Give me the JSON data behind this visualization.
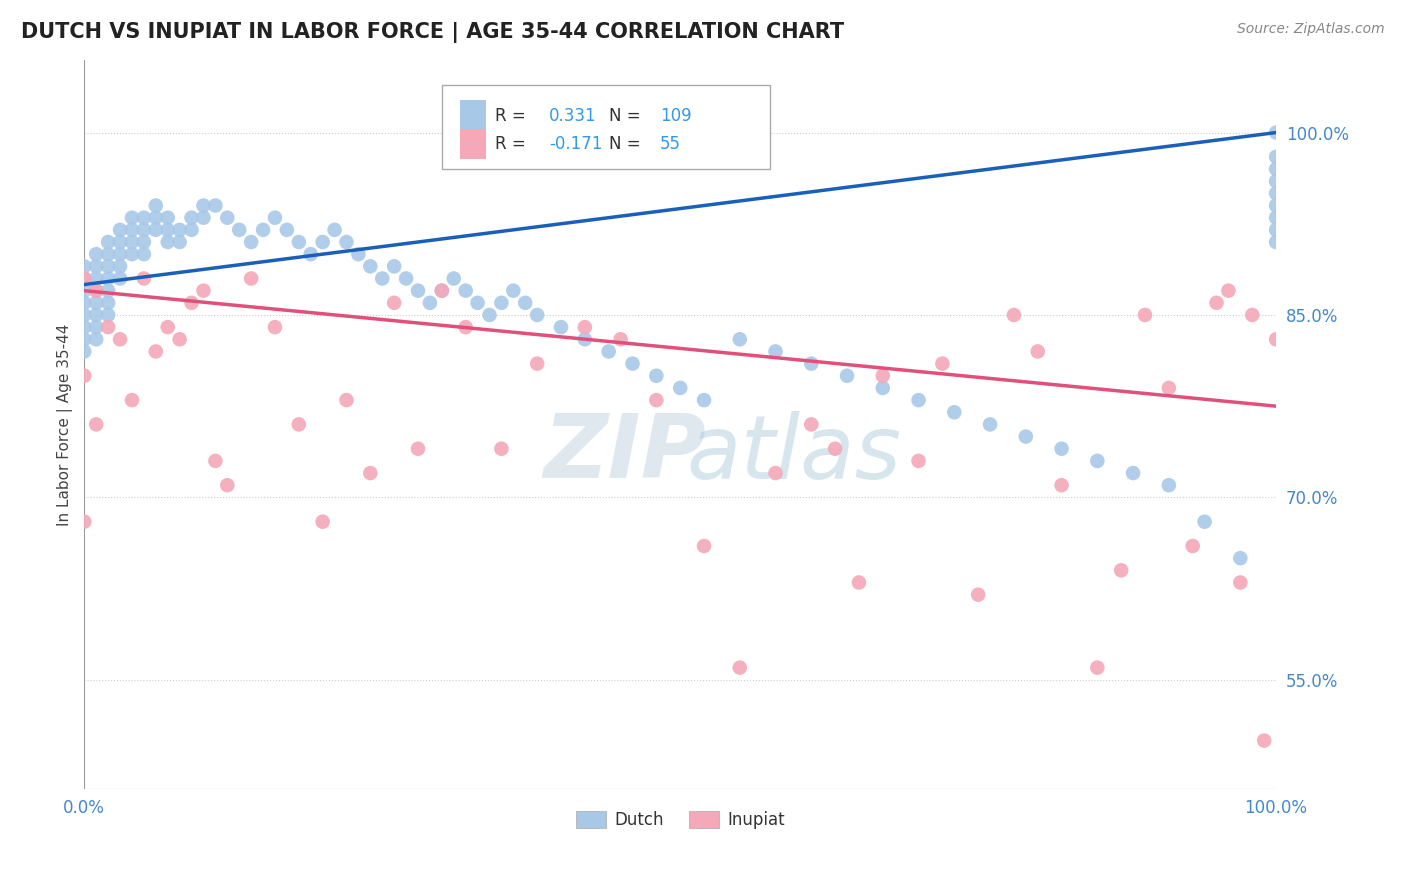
{
  "title": "DUTCH VS INUPIAT IN LABOR FORCE | AGE 35-44 CORRELATION CHART",
  "source": "Source: ZipAtlas.com",
  "ylabel": "In Labor Force | Age 35-44",
  "xlim": [
    0.0,
    1.0
  ],
  "ylim": [
    0.46,
    1.06
  ],
  "xtick_labels": [
    "0.0%",
    "100.0%"
  ],
  "ytick_labels": [
    "55.0%",
    "70.0%",
    "85.0%",
    "100.0%"
  ],
  "ytick_positions": [
    0.55,
    0.7,
    0.85,
    1.0
  ],
  "dutch_R": 0.331,
  "dutch_N": 109,
  "inupiat_R": -0.171,
  "inupiat_N": 55,
  "dutch_color": "#a8c8e8",
  "inupiat_color": "#f4a8b8",
  "dutch_line_color": "#1a5fba",
  "inupiat_line_color": "#e0507a",
  "background_color": "#ffffff",
  "grid_color": "#cccccc",
  "watermark_zip": "ZIP",
  "watermark_atlas": "atlas",
  "title_fontsize": 15,
  "dutch_points_x": [
    0.0,
    0.0,
    0.0,
    0.0,
    0.0,
    0.0,
    0.0,
    0.0,
    0.01,
    0.01,
    0.01,
    0.01,
    0.01,
    0.01,
    0.01,
    0.01,
    0.02,
    0.02,
    0.02,
    0.02,
    0.02,
    0.02,
    0.02,
    0.03,
    0.03,
    0.03,
    0.03,
    0.03,
    0.04,
    0.04,
    0.04,
    0.04,
    0.05,
    0.05,
    0.05,
    0.05,
    0.06,
    0.06,
    0.06,
    0.07,
    0.07,
    0.07,
    0.08,
    0.08,
    0.09,
    0.09,
    0.1,
    0.1,
    0.11,
    0.12,
    0.13,
    0.14,
    0.15,
    0.16,
    0.17,
    0.18,
    0.19,
    0.2,
    0.21,
    0.22,
    0.23,
    0.24,
    0.25,
    0.26,
    0.27,
    0.28,
    0.29,
    0.3,
    0.31,
    0.32,
    0.33,
    0.34,
    0.35,
    0.36,
    0.37,
    0.38,
    0.4,
    0.42,
    0.44,
    0.46,
    0.48,
    0.5,
    0.52,
    0.55,
    0.58,
    0.61,
    0.64,
    0.67,
    0.7,
    0.73,
    0.76,
    0.79,
    0.82,
    0.85,
    0.88,
    0.91,
    0.94,
    0.97,
    1.0,
    1.0,
    1.0,
    1.0,
    1.0,
    1.0,
    1.0,
    1.0,
    1.0
  ],
  "dutch_points_y": [
    0.89,
    0.88,
    0.87,
    0.86,
    0.85,
    0.84,
    0.83,
    0.82,
    0.9,
    0.89,
    0.88,
    0.87,
    0.86,
    0.85,
    0.84,
    0.83,
    0.91,
    0.9,
    0.89,
    0.88,
    0.87,
    0.86,
    0.85,
    0.92,
    0.91,
    0.9,
    0.89,
    0.88,
    0.93,
    0.92,
    0.91,
    0.9,
    0.93,
    0.92,
    0.91,
    0.9,
    0.94,
    0.93,
    0.92,
    0.93,
    0.92,
    0.91,
    0.92,
    0.91,
    0.93,
    0.92,
    0.94,
    0.93,
    0.94,
    0.93,
    0.92,
    0.91,
    0.92,
    0.93,
    0.92,
    0.91,
    0.9,
    0.91,
    0.92,
    0.91,
    0.9,
    0.89,
    0.88,
    0.89,
    0.88,
    0.87,
    0.86,
    0.87,
    0.88,
    0.87,
    0.86,
    0.85,
    0.86,
    0.87,
    0.86,
    0.85,
    0.84,
    0.83,
    0.82,
    0.81,
    0.8,
    0.79,
    0.78,
    0.83,
    0.82,
    0.81,
    0.8,
    0.79,
    0.78,
    0.77,
    0.76,
    0.75,
    0.74,
    0.73,
    0.72,
    0.71,
    0.68,
    0.65,
    0.98,
    0.97,
    0.96,
    0.95,
    0.94,
    0.93,
    0.92,
    0.91,
    1.0
  ],
  "inupiat_points_x": [
    0.0,
    0.0,
    0.0,
    0.01,
    0.01,
    0.02,
    0.03,
    0.04,
    0.05,
    0.06,
    0.07,
    0.08,
    0.09,
    0.1,
    0.11,
    0.12,
    0.14,
    0.16,
    0.18,
    0.2,
    0.22,
    0.24,
    0.26,
    0.28,
    0.3,
    0.32,
    0.35,
    0.38,
    0.42,
    0.45,
    0.48,
    0.52,
    0.55,
    0.58,
    0.61,
    0.63,
    0.65,
    0.67,
    0.7,
    0.72,
    0.75,
    0.78,
    0.8,
    0.82,
    0.85,
    0.87,
    0.89,
    0.91,
    0.93,
    0.95,
    0.96,
    0.97,
    0.98,
    0.99,
    1.0
  ],
  "inupiat_points_y": [
    0.88,
    0.8,
    0.68,
    0.87,
    0.76,
    0.84,
    0.83,
    0.78,
    0.88,
    0.82,
    0.84,
    0.83,
    0.86,
    0.87,
    0.73,
    0.71,
    0.88,
    0.84,
    0.76,
    0.68,
    0.78,
    0.72,
    0.86,
    0.74,
    0.87,
    0.84,
    0.74,
    0.81,
    0.84,
    0.83,
    0.78,
    0.66,
    0.56,
    0.72,
    0.76,
    0.74,
    0.63,
    0.8,
    0.73,
    0.81,
    0.62,
    0.85,
    0.82,
    0.71,
    0.56,
    0.64,
    0.85,
    0.79,
    0.66,
    0.86,
    0.87,
    0.63,
    0.85,
    0.5,
    0.83
  ]
}
